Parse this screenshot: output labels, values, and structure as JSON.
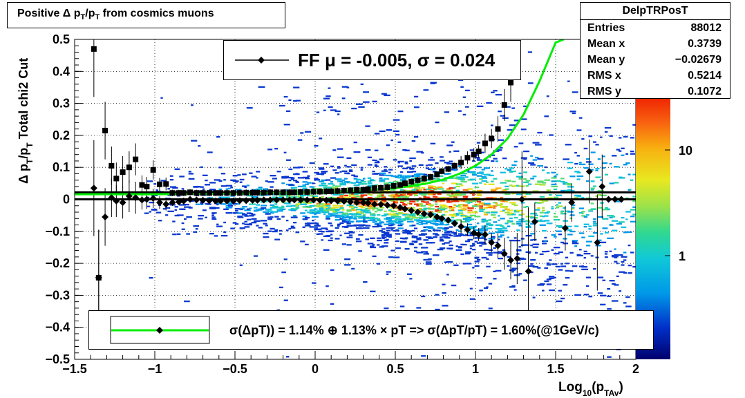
{
  "title": "Positive Δ p_T/p_T from cosmics muons",
  "title_parts": {
    "a": "Positive Δ p",
    "sub1": "T",
    "b": "/p",
    "sub2": "T",
    "c": " from cosmics muons"
  },
  "stats": {
    "name": "DelpTRPosT",
    "rows": [
      {
        "key": "Entries",
        "value": "88012"
      },
      {
        "key": "Mean x",
        "value": "0.3739"
      },
      {
        "key": "Mean y",
        "value": "−0.02679"
      },
      {
        "key": "RMS x",
        "value": "0.5214"
      },
      {
        "key": "RMS y",
        "value": "0.1072"
      }
    ]
  },
  "fit_legend": "FF μ = -0.005, σ =   0.024",
  "resolution_legend": "σ(ΔpT)) =  1.14% ⊕  1.13% × pT => σ(ΔpT/pT) =  1.60%(@1GeV/c)",
  "colors": {
    "fit_curve": "#00ee00",
    "markers": "#000000",
    "palette_low": "#00006e",
    "palette_high": "#ee1f00"
  },
  "chart_data": {
    "type": "heatmap",
    "title": "Positive Δ p_T/p_T from cosmics muons",
    "xlabel": "Log10(pTAv)",
    "ylabel": "Δ pT/pT  Total chi2 Cut",
    "xlabel_parts": {
      "a": "Log",
      "sub1": "10",
      "b": "(p",
      "sub2": "TAv",
      "c": ")"
    },
    "ylabel_parts": {
      "a": "Δ p",
      "sub1": "T",
      "b": "/p",
      "sub2": "T",
      "c": "  Total chi2 Cut"
    },
    "xlim": [
      -1.5,
      2.0
    ],
    "ylim": [
      -0.5,
      0.5
    ],
    "x_ticks": [
      -1.5,
      -1,
      -0.5,
      0,
      0.5,
      1,
      1.5,
      2
    ],
    "x_tick_labels": [
      "−1.5",
      "−1",
      "−0.5",
      "0",
      "0.5",
      "1",
      "1.5",
      "2"
    ],
    "y_ticks": [
      -0.5,
      -0.4,
      -0.3,
      -0.2,
      -0.1,
      0,
      0.1,
      0.2,
      0.3,
      0.4,
      0.5
    ],
    "y_tick_labels": [
      "−0.5",
      "−0.4",
      "−0.3",
      "−0.2",
      "−0.1",
      "0",
      "0.1",
      "0.2",
      "0.3",
      "0.4",
      "0.5"
    ],
    "grid": true,
    "colorbar": {
      "scale": "log",
      "labels": [
        "1",
        "10"
      ],
      "label_values": [
        1,
        10
      ]
    },
    "series": [
      {
        "marker": "square",
        "x": [
          -1.38,
          -1.35,
          -1.31,
          -1.27,
          -1.24,
          -1.2,
          -1.16,
          -1.12,
          -1.08,
          -1.05,
          -1.01,
          -0.97,
          -0.93,
          -0.89,
          -0.85,
          -0.82,
          -0.78,
          -0.74,
          -0.7,
          -0.66,
          -0.62,
          -0.59,
          -0.55,
          -0.51,
          -0.47,
          -0.43,
          -0.39,
          -0.36,
          -0.32,
          -0.28,
          -0.24,
          -0.2,
          -0.16,
          -0.13,
          -0.09,
          -0.05,
          -0.01,
          0.03,
          0.07,
          0.1,
          0.14,
          0.18,
          0.22,
          0.26,
          0.3,
          0.33,
          0.37,
          0.41,
          0.45,
          0.49,
          0.53,
          0.56,
          0.6,
          0.64,
          0.68,
          0.72,
          0.76,
          0.79,
          0.83,
          0.87,
          0.91,
          0.95,
          0.99,
          1.02,
          1.06,
          1.1,
          1.14,
          1.18,
          1.22
        ],
        "y": [
          0.47,
          -0.245,
          0.215,
          0.105,
          0.065,
          0.085,
          0.1,
          0.125,
          0.045,
          0.04,
          0.092,
          0.047,
          0.048,
          0.02,
          0.02,
          0.02,
          0.022,
          0.02,
          0.02,
          0.02,
          0.02,
          0.02,
          0.02,
          0.02,
          0.02,
          0.021,
          0.021,
          0.021,
          0.021,
          0.022,
          0.022,
          0.022,
          0.022,
          0.022,
          0.023,
          0.023,
          0.024,
          0.024,
          0.025,
          0.025,
          0.026,
          0.027,
          0.028,
          0.03,
          0.03,
          0.032,
          0.035,
          0.036,
          0.038,
          0.042,
          0.045,
          0.05,
          0.055,
          0.06,
          0.065,
          0.07,
          0.078,
          0.088,
          0.095,
          0.105,
          0.115,
          0.13,
          0.14,
          0.15,
          0.175,
          0.19,
          0.22,
          0.295,
          0.365
        ],
        "err": [
          0.15,
          0.15,
          0.09,
          0.06,
          0.05,
          0.05,
          0.05,
          0.05,
          0.03,
          0.03,
          0.03,
          0.02,
          0.02,
          0.01,
          0.01,
          0.01,
          0.01,
          0.01,
          0.01,
          0.01,
          0.01,
          0.01,
          0.01,
          0.01,
          0.01,
          0.01,
          0.01,
          0.01,
          0.01,
          0.01,
          0.01,
          0.01,
          0.01,
          0.01,
          0.01,
          0.01,
          0.01,
          0.01,
          0.01,
          0.01,
          0.01,
          0.01,
          0.01,
          0.01,
          0.01,
          0.01,
          0.01,
          0.01,
          0.01,
          0.01,
          0.01,
          0.01,
          0.01,
          0.01,
          0.01,
          0.01,
          0.01,
          0.01,
          0.01,
          0.01,
          0.02,
          0.02,
          0.02,
          0.02,
          0.03,
          0.03,
          0.04,
          0.05,
          0.06
        ]
      },
      {
        "marker": "diamond",
        "x": [
          -1.38,
          -1.35,
          -1.31,
          -1.27,
          -1.24,
          -1.2,
          -1.16,
          -1.12,
          -1.08,
          -1.05,
          -1.01,
          -0.97,
          -0.93,
          -0.89,
          -0.85,
          -0.82,
          -0.78,
          -0.74,
          -0.7,
          -0.66,
          -0.62,
          -0.59,
          -0.55,
          -0.51,
          -0.47,
          -0.43,
          -0.39,
          -0.36,
          -0.32,
          -0.28,
          -0.24,
          -0.2,
          -0.16,
          -0.13,
          -0.09,
          -0.05,
          -0.01,
          0.03,
          0.07,
          0.1,
          0.14,
          0.18,
          0.22,
          0.26,
          0.3,
          0.33,
          0.37,
          0.41,
          0.45,
          0.49,
          0.53,
          0.56,
          0.6,
          0.64,
          0.68,
          0.72,
          0.76,
          0.79,
          0.83,
          0.87,
          0.91,
          0.95,
          0.99,
          1.02,
          1.06,
          1.1,
          1.14,
          1.18,
          1.22,
          1.26,
          1.29,
          1.33,
          1.37,
          1.56,
          1.6,
          1.71,
          1.76,
          1.79,
          1.83,
          1.87,
          1.91
        ],
        "y": [
          0.035,
          -0.245,
          -0.055,
          0.005,
          -0.005,
          -0.01,
          0.01,
          0.005,
          -0.002,
          0.0,
          0.003,
          -0.01,
          -0.015,
          -0.01,
          -0.008,
          -0.005,
          0.0,
          -0.002,
          -0.003,
          -0.004,
          -0.005,
          -0.005,
          -0.005,
          -0.005,
          -0.004,
          -0.004,
          -0.003,
          -0.003,
          -0.002,
          -0.002,
          -0.002,
          -0.002,
          -0.002,
          -0.002,
          -0.002,
          -0.002,
          -0.002,
          -0.003,
          -0.003,
          -0.004,
          -0.005,
          -0.006,
          -0.008,
          -0.01,
          -0.01,
          -0.012,
          -0.015,
          -0.016,
          -0.018,
          -0.02,
          -0.025,
          -0.03,
          -0.035,
          -0.04,
          -0.045,
          -0.048,
          -0.055,
          -0.06,
          -0.065,
          -0.075,
          -0.085,
          -0.095,
          -0.105,
          -0.11,
          -0.11,
          -0.135,
          -0.145,
          -0.17,
          -0.19,
          -0.185,
          0.0,
          -0.225,
          -0.07,
          -0.09,
          -0.01,
          0.087,
          -0.135,
          0.04,
          0.0,
          0.0,
          0.0
        ],
        "err": [
          0.15,
          0.15,
          0.09,
          0.06,
          0.05,
          0.05,
          0.05,
          0.05,
          0.03,
          0.03,
          0.03,
          0.02,
          0.02,
          0.01,
          0.01,
          0.01,
          0.01,
          0.01,
          0.01,
          0.01,
          0.01,
          0.01,
          0.01,
          0.01,
          0.01,
          0.01,
          0.01,
          0.01,
          0.01,
          0.01,
          0.01,
          0.01,
          0.01,
          0.01,
          0.01,
          0.01,
          0.01,
          0.01,
          0.01,
          0.01,
          0.01,
          0.01,
          0.01,
          0.01,
          0.01,
          0.01,
          0.01,
          0.01,
          0.01,
          0.01,
          0.01,
          0.01,
          0.01,
          0.01,
          0.01,
          0.01,
          0.01,
          0.01,
          0.01,
          0.01,
          0.02,
          0.02,
          0.02,
          0.02,
          0.03,
          0.03,
          0.04,
          0.05,
          0.06,
          0.08,
          0.15,
          0.2,
          0.06,
          0.07,
          0.06,
          0.1,
          0.15,
          0.1,
          0.0,
          0.0,
          0.0
        ]
      },
      {
        "name": "fit",
        "marker": "line",
        "x": [
          -1.5,
          -1.25,
          -1.0,
          -0.75,
          -0.5,
          -0.25,
          0.0,
          0.25,
          0.5,
          0.6,
          0.7,
          0.8,
          0.9,
          1.0,
          1.1,
          1.2,
          1.3,
          1.4,
          1.5,
          1.55
        ],
        "y": [
          0.016,
          0.016,
          0.016,
          0.017,
          0.018,
          0.02,
          0.022,
          0.026,
          0.035,
          0.042,
          0.05,
          0.062,
          0.08,
          0.105,
          0.14,
          0.19,
          0.265,
          0.37,
          0.49,
          0.5
        ]
      }
    ],
    "reference_lines": [
      {
        "y": 0.022,
        "xmax": 2.0
      },
      {
        "y": 0.0,
        "xmax": 2.0
      }
    ]
  }
}
